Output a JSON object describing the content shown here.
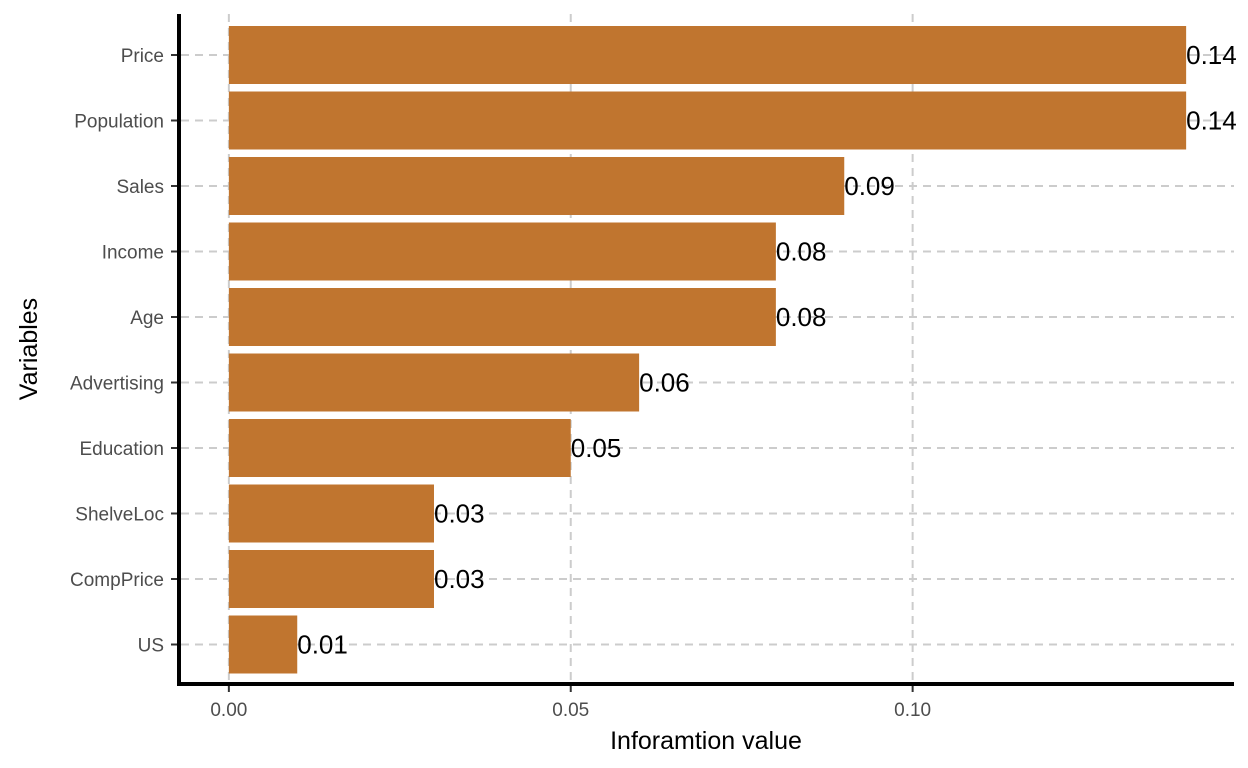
{
  "chart_data": {
    "type": "bar",
    "orientation": "horizontal",
    "title": "",
    "xlabel": "Inforamtion value",
    "ylabel": "Variables",
    "categories": [
      "Price",
      "Population",
      "Sales",
      "Income",
      "Age",
      "Advertising",
      "Education",
      "ShelveLoc",
      "CompPrice",
      "US"
    ],
    "values": [
      0.14,
      0.14,
      0.09,
      0.08,
      0.08,
      0.06,
      0.05,
      0.03,
      0.03,
      0.01
    ],
    "data_labels": [
      "0.14",
      "0.14",
      "0.09",
      "0.08",
      "0.08",
      "0.06",
      "0.05",
      "0.03",
      "0.03",
      "0.01"
    ],
    "xticks": [
      0.0,
      0.05,
      0.1
    ],
    "xtick_labels": [
      "0.00",
      "0.05",
      "0.10"
    ],
    "xlim": [
      -0.007,
      0.147
    ],
    "grid": true,
    "legend": "none",
    "bar_color": "#c0752f",
    "grid_color": "#cccccc",
    "axis_color": "#000000"
  }
}
